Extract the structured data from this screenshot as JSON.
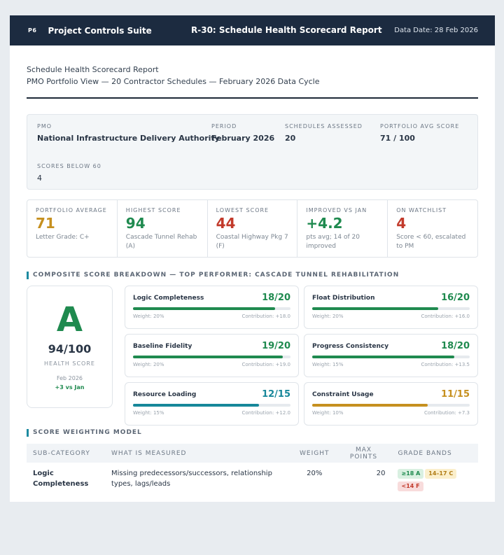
{
  "header": {
    "logo": "P6",
    "suite": "Project Controls Suite",
    "report_title": "R-30: Schedule Health Scorecard Report",
    "data_date": "Data Date: 28 Feb 2026"
  },
  "document": {
    "title": "Schedule Health Scorecard Report",
    "subtitle": "PMO Portfolio View — 20 Contractor Schedules — February 2026 Data Cycle"
  },
  "meta": {
    "pmo_label": "PMO",
    "pmo_value": "National Infrastructure Delivery Authority",
    "period_label": "PERIOD",
    "period_value": "February 2026",
    "assessed_label": "SCHEDULES ASSESSED",
    "assessed_value": "20",
    "avg_label": "PORTFOLIO AVG SCORE",
    "avg_value": "71 / 100",
    "below_label": "SCORES BELOW 60",
    "below_value": "4"
  },
  "kpis": [
    {
      "label": "PORTFOLIO AVERAGE",
      "value": "71",
      "note": "Letter Grade: C+"
    },
    {
      "label": "HIGHEST SCORE",
      "value": "94",
      "note": "Cascade Tunnel Rehab (A)"
    },
    {
      "label": "LOWEST SCORE",
      "value": "44",
      "note": "Coastal Highway Pkg 7 (F)"
    },
    {
      "label": "IMPROVED VS JAN",
      "value": "+4.2",
      "note": "pts avg; 14 of 20 improved"
    },
    {
      "label": "ON WATCHLIST",
      "value": "4",
      "note": "Score < 60, escalated to PM"
    }
  ],
  "breakdown": {
    "section_title": "COMPOSITE SCORE BREAKDOWN — TOP PERFORMER: CASCADE TUNNEL REHABILITATION",
    "grade": "A",
    "score": "94/100",
    "score_label": "HEALTH SCORE",
    "date": "Feb 2026",
    "delta": "+3 vs Jan",
    "components": [
      {
        "name": "Logic Completeness",
        "score": "18/20",
        "fill": 0.9,
        "color": "#1f8a4f",
        "weight": "Weight: 20%",
        "contribution": "Contribution: +18.0"
      },
      {
        "name": "Float Distribution",
        "score": "16/20",
        "fill": 0.8,
        "color": "#1f8a4f",
        "weight": "Weight: 20%",
        "contribution": "Contribution: +16.0"
      },
      {
        "name": "Baseline Fidelity",
        "score": "19/20",
        "fill": 0.95,
        "color": "#1f8a4f",
        "weight": "Weight: 20%",
        "contribution": "Contribution: +19.0"
      },
      {
        "name": "Progress Consistency",
        "score": "18/20",
        "fill": 0.9,
        "color": "#1f8a4f",
        "weight": "Weight: 15%",
        "contribution": "Contribution: +13.5"
      },
      {
        "name": "Resource Loading",
        "score": "12/15",
        "fill": 0.8,
        "color": "#17879a",
        "weight": "Weight: 15%",
        "contribution": "Contribution: +12.0"
      },
      {
        "name": "Constraint Usage",
        "score": "11/15",
        "fill": 0.733,
        "color": "#c6901f",
        "weight": "Weight: 10%",
        "contribution": "Contribution: +7.3"
      }
    ]
  },
  "weighting": {
    "section_title": "SCORE WEIGHTING MODEL",
    "columns": [
      "SUB-CATEGORY",
      "WHAT IS MEASURED",
      "WEIGHT",
      "MAX POINTS",
      "GRADE BANDS"
    ],
    "rows": [
      {
        "sub": "Logic Completeness",
        "measured": "Missing predecessors/successors, relationship types, lags/leads",
        "weight": "20%",
        "max": "20",
        "band_a": "≥18 A",
        "band_c": "14–17 C",
        "band_f": "<14 F"
      }
    ]
  }
}
